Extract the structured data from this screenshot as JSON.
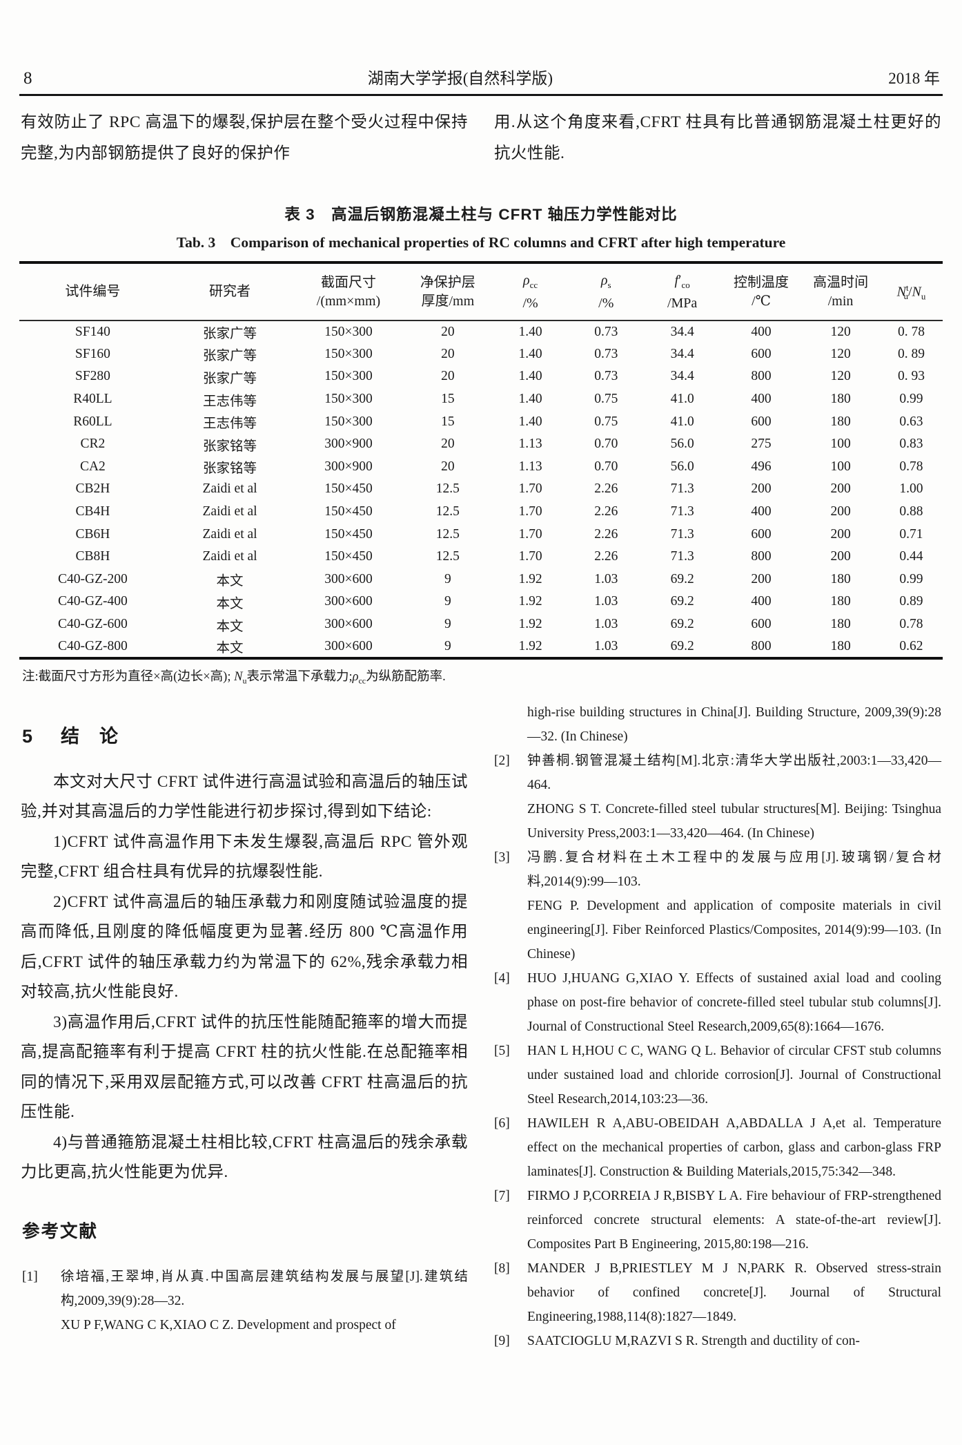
{
  "page_header": {
    "page_number": "8",
    "journal": "湖南大学学报(自然科学版)",
    "year": "2018 年"
  },
  "intro": {
    "left": "有效防止了 RPC 高温下的爆裂,保护层在整个受火过程中保持完整,为内部钢筋提供了良好的保护作",
    "right": "用.从这个角度来看,CFRT 柱具有比普通钢筋混凝土柱更好的抗火性能."
  },
  "table": {
    "caption_zh": "表 3　高温后钢筋混凝土柱与 CFRT 轴压力学性能对比",
    "caption_en": "Tab. 3　Comparison of mechanical properties of RC columns and CFRT after high temperature",
    "columns": [
      {
        "l1": "试件编号",
        "l2": "",
        "width": "15.9%"
      },
      {
        "l1": "研究者",
        "l2": "",
        "width": "13.8%"
      },
      {
        "l1": "截面尺寸",
        "l2": "/(mm×mm)",
        "width": "11.9%"
      },
      {
        "l1": "净保护层",
        "l2": "厚度/mm",
        "width": "9.6%"
      },
      {
        "l1": "*ρ*_{cc}",
        "l2": "/%",
        "width": "8.3%"
      },
      {
        "l1": "*ρ*_{s}",
        "l2": "/%",
        "width": "8.1%"
      },
      {
        "l1": "*f*′_{co}",
        "l2": "/MPa",
        "width": "8.4%"
      },
      {
        "l1": "控制温度",
        "l2": "/℃",
        "width": "8.7%"
      },
      {
        "l1": "高温时间",
        "l2": "/min",
        "width": "8.5%"
      },
      {
        "l1": "*N*^{t}_{u}/*N*_{u}",
        "l2": "",
        "width": "6.8%"
      }
    ],
    "rows": [
      [
        "SF140",
        "张家广等",
        "150×300",
        "20",
        "1.40",
        "0.73",
        "34.4",
        "400",
        "120",
        "0. 78"
      ],
      [
        "SF160",
        "张家广等",
        "150×300",
        "20",
        "1.40",
        "0.73",
        "34.4",
        "600",
        "120",
        "0. 89"
      ],
      [
        "SF280",
        "张家广等",
        "150×300",
        "20",
        "1.40",
        "0.73",
        "34.4",
        "800",
        "120",
        "0. 93"
      ],
      [
        "R40LL",
        "王志伟等",
        "150×300",
        "15",
        "1.40",
        "0.75",
        "41.0",
        "400",
        "180",
        "0.99"
      ],
      [
        "R60LL",
        "王志伟等",
        "150×300",
        "15",
        "1.40",
        "0.75",
        "41.0",
        "600",
        "180",
        "0.63"
      ],
      [
        "CR2",
        "张家铭等",
        "300×900",
        "20",
        "1.13",
        "0.70",
        "56.0",
        "275",
        "100",
        "0.83"
      ],
      [
        "CA2",
        "张家铭等",
        "300×900",
        "20",
        "1.13",
        "0.70",
        "56.0",
        "496",
        "100",
        "0.78"
      ],
      [
        "CB2H",
        "Zaidi et al",
        "150×450",
        "12.5",
        "1.70",
        "2.26",
        "71.3",
        "200",
        "200",
        "1.00"
      ],
      [
        "CB4H",
        "Zaidi et al",
        "150×450",
        "12.5",
        "1.70",
        "2.26",
        "71.3",
        "400",
        "200",
        "0.88"
      ],
      [
        "CB6H",
        "Zaidi et al",
        "150×450",
        "12.5",
        "1.70",
        "2.26",
        "71.3",
        "600",
        "200",
        "0.71"
      ],
      [
        "CB8H",
        "Zaidi et al",
        "150×450",
        "12.5",
        "1.70",
        "2.26",
        "71.3",
        "800",
        "200",
        "0.44"
      ],
      [
        "C40-GZ-200",
        "本文",
        "300×600",
        "9",
        "1.92",
        "1.03",
        "69.2",
        "200",
        "180",
        "0.99"
      ],
      [
        "C40-GZ-400",
        "本文",
        "300×600",
        "9",
        "1.92",
        "1.03",
        "69.2",
        "400",
        "180",
        "0.89"
      ],
      [
        "C40-GZ-600",
        "本文",
        "300×600",
        "9",
        "1.92",
        "1.03",
        "69.2",
        "600",
        "180",
        "0.78"
      ],
      [
        "C40-GZ-800",
        "本文",
        "300×600",
        "9",
        "1.92",
        "1.03",
        "69.2",
        "800",
        "180",
        "0.62"
      ]
    ],
    "note": "注:截面尺寸方形为直径×高(边长×高); *N*_{u}表示常温下承载力;*ρ*_{cc}为纵筋配筋率."
  },
  "conclusion": {
    "number": "5",
    "title": "结　论",
    "paragraphs": [
      "本文对大尺寸 CFRT 试件进行高温试验和高温后的轴压试验,并对其高温后的力学性能进行初步探讨,得到如下结论:",
      "1)CFRT 试件高温作用下未发生爆裂,高温后 RPC 管外观完整,CFRT 组合柱具有优异的抗爆裂性能.",
      "2)CFRT 试件高温后的轴压承载力和刚度随试验温度的提高而降低,且刚度的降低幅度更为显著.经历 800 ℃高温作用后,CFRT 试件的轴压承载力约为常温下的 62%,残余承载力相对较高,抗火性能良好.",
      "3)高温作用后,CFRT 试件的抗压性能随配箍率的增大而提高,提高配箍率有利于提高 CFRT 柱的抗火性能.在总配箍率相同的情况下,采用双层配箍方式,可以改善 CFRT 柱高温后的抗压性能.",
      "4)与普通箍筋混凝土柱相比较,CFRT 柱高温后的残余承载力比更高,抗火性能更为优异."
    ]
  },
  "references": {
    "heading": "参考文献",
    "left_entries": [
      {
        "num": "[1]",
        "blocks": [
          "徐培福,王翠坤,肖从真.中国高层建筑结构发展与展望[J].建筑结构,2009,39(9):28—32.",
          "XU P F,WANG C K,XIAO C Z. Development and prospect of"
        ]
      }
    ],
    "right_entries": [
      {
        "num": "",
        "blocks": [
          "high-rise building structures in China[J]. Building Structure, 2009,39(9):28—32. (In Chinese)"
        ]
      },
      {
        "num": "[2]",
        "blocks": [
          "钟善桐.钢管混凝土结构[M].北京:清华大学出版社,2003:1—33,420—464.",
          "ZHONG S T. Concrete-filled steel tubular structures[M]. Beijing: Tsinghua University Press,2003:1—33,420—464. (In Chinese)"
        ]
      },
      {
        "num": "[3]",
        "blocks": [
          "冯鹏.复合材料在土木工程中的发展与应用[J].玻璃钢/复合材料,2014(9):99—103.",
          "FENG P. Development and application of composite materials in civil engineering[J]. Fiber Reinforced Plastics/Composites, 2014(9):99—103. (In Chinese)"
        ]
      },
      {
        "num": "[4]",
        "blocks": [
          "HUO J,HUANG G,XIAO Y. Effects of sustained axial load and cooling phase on post-fire behavior of concrete-filled steel tubular stub columns[J]. Journal of Constructional Steel Research,2009,65(8):1664—1676."
        ]
      },
      {
        "num": "[5]",
        "blocks": [
          "HAN L H,HOU C C, WANG Q L. Behavior of circular CFST stub columns under sustained load and chloride corrosion[J]. Journal of Constructional Steel Research,2014,103:23—36."
        ]
      },
      {
        "num": "[6]",
        "blocks": [
          "HAWILEH R A,ABU-OBEIDAH A,ABDALLA J A,et al. Temperature effect on the mechanical properties of carbon, glass and carbon-glass FRP laminates[J]. Construction & Building Materials,2015,75:342—348."
        ]
      },
      {
        "num": "[7]",
        "blocks": [
          "FIRMO J P,CORREIA J R,BISBY L A. Fire behaviour of FRP-strengthened reinforced concrete structural elements: A state-of-the-art review[J]. Composites Part B Engineering, 2015,80:198—216."
        ]
      },
      {
        "num": "[8]",
        "blocks": [
          "MANDER J B,PRIESTLEY M J N,PARK R. Observed stress-strain behavior of confined concrete[J]. Journal of Structural Engineering,1988,114(8):1827—1849."
        ]
      },
      {
        "num": "[9]",
        "blocks": [
          "SAATCIOGLU M,RAZVI S R. Strength and ductility of con-"
        ]
      }
    ]
  }
}
